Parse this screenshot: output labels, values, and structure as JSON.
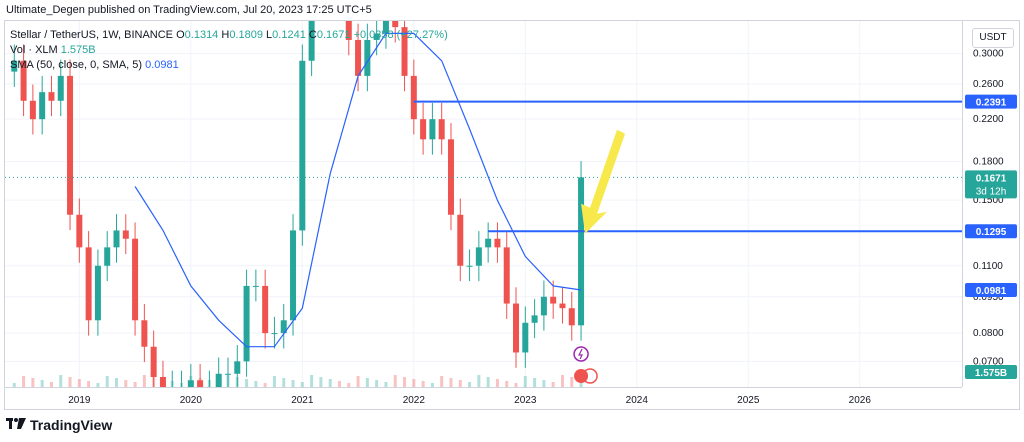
{
  "header": {
    "published_line": "Ultimate_Degen published on TradingView.com, Jul 20, 2023 17:25 UTC+5"
  },
  "legend": {
    "symbol_line": "Stellar / TetherUS, 1W, BINANCE",
    "ohlc": {
      "o_label": "O",
      "o": "0.1314",
      "h_label": "H",
      "h": "0.1809",
      "l_label": "L",
      "l": "0.1241",
      "c_label": "C",
      "c": "0.1671",
      "change": "+0.0358 (+27.27%)"
    },
    "vol_label": "Vol · XLM",
    "vol_value": "1.575B",
    "sma_label": "SMA (50, close, 0, SMA, 5)",
    "sma_value": "0.0981"
  },
  "scale": {
    "unit_button": "USDT"
  },
  "badges": {
    "level_high": "0.2391",
    "price": "0.1671",
    "countdown": "3d 12h",
    "level_low": "0.1295",
    "sma": "0.0981",
    "volume": "1.575B"
  },
  "footer": {
    "brand": "TradingView"
  },
  "colors": {
    "up": "#26a69a",
    "down": "#ef5350",
    "sma": "#2962ff",
    "level_line": "#2962ff",
    "arrow": "#f7e94b"
  },
  "chart_data": {
    "type": "candlestick",
    "y_scale": "log",
    "ylim": [
      0.062,
      0.35
    ],
    "y_ticks": [
      "0.3000",
      "0.2600",
      "0.2200",
      "0.1800",
      "0.1500",
      "0.1100",
      "0.0950",
      "0.0800",
      "0.0700"
    ],
    "x_ticks": [
      "2019",
      "2020",
      "2021",
      "2022",
      "2023",
      "2024",
      "2025",
      "2026"
    ],
    "x_range": [
      "2018-05",
      "2026-12"
    ],
    "price_series": [
      {
        "t": "2018-06",
        "c": 0.29
      },
      {
        "t": "2018-07",
        "c": 0.24
      },
      {
        "t": "2018-08",
        "c": 0.22
      },
      {
        "t": "2018-09",
        "c": 0.25
      },
      {
        "t": "2018-10",
        "c": 0.24
      },
      {
        "t": "2018-11",
        "c": 0.27
      },
      {
        "t": "2018-12",
        "c": 0.14
      },
      {
        "t": "2019-01",
        "c": 0.12
      },
      {
        "t": "2019-02",
        "c": 0.085
      },
      {
        "t": "2019-03",
        "c": 0.11
      },
      {
        "t": "2019-04",
        "c": 0.12
      },
      {
        "t": "2019-05",
        "c": 0.13
      },
      {
        "t": "2019-06",
        "c": 0.125
      },
      {
        "t": "2019-07",
        "c": 0.085
      },
      {
        "t": "2019-08",
        "c": 0.075
      },
      {
        "t": "2019-09",
        "c": 0.065
      },
      {
        "t": "2019-10",
        "c": 0.062
      },
      {
        "t": "2019-11",
        "c": 0.062
      },
      {
        "t": "2019-12",
        "c": 0.062
      },
      {
        "t": "2020-01",
        "c": 0.064
      },
      {
        "t": "2020-02",
        "c": 0.062
      },
      {
        "t": "2020-03",
        "c": 0.062
      },
      {
        "t": "2020-04",
        "c": 0.066
      },
      {
        "t": "2020-05",
        "c": 0.066
      },
      {
        "t": "2020-06",
        "c": 0.07
      },
      {
        "t": "2020-07",
        "c": 0.1
      },
      {
        "t": "2020-08",
        "c": 0.1
      },
      {
        "t": "2020-09",
        "c": 0.08
      },
      {
        "t": "2020-10",
        "c": 0.08
      },
      {
        "t": "2020-11",
        "c": 0.085
      },
      {
        "t": "2020-12",
        "c": 0.13
      },
      {
        "t": "2021-01",
        "c": 0.29
      },
      {
        "t": "2021-02",
        "c": 0.38
      },
      {
        "t": "2021-03",
        "c": 0.4
      },
      {
        "t": "2021-04",
        "c": 0.5
      },
      {
        "t": "2021-05",
        "c": 0.4
      },
      {
        "t": "2021-06",
        "c": 0.32
      },
      {
        "t": "2021-07",
        "c": 0.27
      },
      {
        "t": "2021-08",
        "c": 0.32
      },
      {
        "t": "2021-09",
        "c": 0.33
      },
      {
        "t": "2021-10",
        "c": 0.36
      },
      {
        "t": "2021-11",
        "c": 0.34
      },
      {
        "t": "2021-12",
        "c": 0.27
      },
      {
        "t": "2022-01",
        "c": 0.22
      },
      {
        "t": "2022-02",
        "c": 0.2
      },
      {
        "t": "2022-03",
        "c": 0.22
      },
      {
        "t": "2022-04",
        "c": 0.2
      },
      {
        "t": "2022-05",
        "c": 0.14
      },
      {
        "t": "2022-06",
        "c": 0.11
      },
      {
        "t": "2022-07",
        "c": 0.11
      },
      {
        "t": "2022-08",
        "c": 0.12
      },
      {
        "t": "2022-09",
        "c": 0.125
      },
      {
        "t": "2022-10",
        "c": 0.12
      },
      {
        "t": "2022-11",
        "c": 0.092
      },
      {
        "t": "2022-12",
        "c": 0.073
      },
      {
        "t": "2023-01",
        "c": 0.084
      },
      {
        "t": "2023-02",
        "c": 0.087
      },
      {
        "t": "2023-03",
        "c": 0.095
      },
      {
        "t": "2023-04",
        "c": 0.092
      },
      {
        "t": "2023-05",
        "c": 0.09
      },
      {
        "t": "2023-06",
        "c": 0.083
      },
      {
        "t": "2023-07",
        "c": 0.1671
      }
    ],
    "sma_series": [
      {
        "t": "2019-07",
        "v": 0.16
      },
      {
        "t": "2019-10",
        "v": 0.13
      },
      {
        "t": "2020-01",
        "v": 0.1
      },
      {
        "t": "2020-04",
        "v": 0.085
      },
      {
        "t": "2020-07",
        "v": 0.075
      },
      {
        "t": "2020-10",
        "v": 0.075
      },
      {
        "t": "2021-01",
        "v": 0.09
      },
      {
        "t": "2021-04",
        "v": 0.17
      },
      {
        "t": "2021-07",
        "v": 0.27
      },
      {
        "t": "2021-10",
        "v": 0.33
      },
      {
        "t": "2022-01",
        "v": 0.33
      },
      {
        "t": "2022-04",
        "v": 0.29
      },
      {
        "t": "2022-07",
        "v": 0.21
      },
      {
        "t": "2022-10",
        "v": 0.15
      },
      {
        "t": "2023-01",
        "v": 0.115
      },
      {
        "t": "2023-04",
        "v": 0.1
      },
      {
        "t": "2023-07",
        "v": 0.0981
      }
    ],
    "horizontal_levels": [
      {
        "value": 0.2391,
        "from": "2022-01"
      },
      {
        "value": 0.1295,
        "from": "2022-09"
      }
    ]
  }
}
